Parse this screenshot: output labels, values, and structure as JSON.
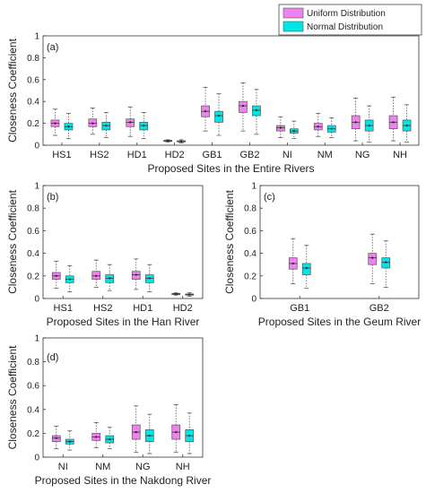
{
  "legend": {
    "placement": "top-right",
    "entries": [
      {
        "label": "Uniform Distribution",
        "color": "#ee82ee"
      },
      {
        "label": "Normal Distribution",
        "color": "#00e5e5"
      }
    ]
  },
  "chart_data": [
    {
      "type": "box",
      "panel_label": "(a)",
      "xlabel": "Proposed Sites in the Entire Rivers",
      "ylabel": "Closeness Coefficient",
      "ylim": [
        0,
        1
      ],
      "yticks": [
        "0",
        "0.2",
        "0.4",
        "0.6",
        "0.8",
        "1"
      ],
      "categories": [
        "HS1",
        "HS2",
        "HD1",
        "HD2",
        "GB1",
        "GB2",
        "NI",
        "NM",
        "NG",
        "NH"
      ],
      "series": [
        {
          "name": "Uniform Distribution",
          "color": "#ee82ee",
          "boxes": [
            [
              0.09,
              0.17,
              0.2,
              0.23,
              0.33
            ],
            [
              0.1,
              0.17,
              0.2,
              0.24,
              0.34
            ],
            [
              0.08,
              0.17,
              0.21,
              0.24,
              0.35
            ],
            [
              0.03,
              0.035,
              0.04,
              0.045,
              0.05
            ],
            [
              0.13,
              0.26,
              0.31,
              0.36,
              0.53
            ],
            [
              0.13,
              0.3,
              0.36,
              0.4,
              0.57
            ],
            [
              0.07,
              0.13,
              0.16,
              0.18,
              0.26
            ],
            [
              0.08,
              0.14,
              0.17,
              0.2,
              0.29
            ],
            [
              0.04,
              0.15,
              0.21,
              0.27,
              0.43
            ],
            [
              0.04,
              0.15,
              0.21,
              0.27,
              0.44
            ]
          ]
        },
        {
          "name": "Normal Distribution",
          "color": "#00e5e5",
          "boxes": [
            [
              0.06,
              0.14,
              0.17,
              0.2,
              0.29
            ],
            [
              0.07,
              0.14,
              0.18,
              0.21,
              0.3
            ],
            [
              0.06,
              0.14,
              0.18,
              0.21,
              0.3
            ],
            [
              0.02,
              0.03,
              0.035,
              0.04,
              0.05
            ],
            [
              0.09,
              0.21,
              0.27,
              0.31,
              0.47
            ],
            [
              0.1,
              0.27,
              0.32,
              0.36,
              0.51
            ],
            [
              0.06,
              0.11,
              0.13,
              0.15,
              0.22
            ],
            [
              0.07,
              0.12,
              0.15,
              0.18,
              0.25
            ],
            [
              0.03,
              0.13,
              0.18,
              0.23,
              0.36
            ],
            [
              0.03,
              0.13,
              0.18,
              0.23,
              0.37
            ]
          ]
        }
      ]
    },
    {
      "type": "box",
      "panel_label": "(b)",
      "xlabel": "Proposed Sites in the Han River",
      "ylabel": "Closeness Coefficient",
      "ylim": [
        0,
        1
      ],
      "yticks": [
        "0",
        "0.2",
        "0.4",
        "0.6",
        "0.8",
        "1"
      ],
      "categories": [
        "HS1",
        "HS2",
        "HD1",
        "HD2"
      ],
      "series": [
        {
          "name": "Uniform Distribution",
          "color": "#ee82ee",
          "boxes": [
            [
              0.09,
              0.17,
              0.2,
              0.23,
              0.33
            ],
            [
              0.1,
              0.17,
              0.2,
              0.24,
              0.34
            ],
            [
              0.08,
              0.17,
              0.21,
              0.24,
              0.35
            ],
            [
              0.03,
              0.035,
              0.04,
              0.045,
              0.05
            ]
          ]
        },
        {
          "name": "Normal Distribution",
          "color": "#00e5e5",
          "boxes": [
            [
              0.06,
              0.14,
              0.17,
              0.2,
              0.29
            ],
            [
              0.07,
              0.14,
              0.18,
              0.21,
              0.3
            ],
            [
              0.06,
              0.14,
              0.18,
              0.21,
              0.3
            ],
            [
              0.02,
              0.03,
              0.035,
              0.04,
              0.05
            ]
          ]
        }
      ]
    },
    {
      "type": "box",
      "panel_label": "(c)",
      "xlabel": "Proposed Sites in the Geum River",
      "ylabel": "Closeness Coefficient",
      "ylim": [
        0,
        1
      ],
      "yticks": [
        "0",
        "0.2",
        "0.4",
        "0.6",
        "0.8",
        "1"
      ],
      "categories": [
        "GB1",
        "GB2"
      ],
      "series": [
        {
          "name": "Uniform Distribution",
          "color": "#ee82ee",
          "boxes": [
            [
              0.13,
              0.26,
              0.31,
              0.36,
              0.53
            ],
            [
              0.13,
              0.3,
              0.36,
              0.4,
              0.57
            ]
          ]
        },
        {
          "name": "Normal Distribution",
          "color": "#00e5e5",
          "boxes": [
            [
              0.09,
              0.21,
              0.27,
              0.31,
              0.47
            ],
            [
              0.1,
              0.27,
              0.32,
              0.36,
              0.51
            ]
          ]
        }
      ]
    },
    {
      "type": "box",
      "panel_label": "(d)",
      "xlabel": "Proposed Sites in the Nakdong River",
      "ylabel": "Closeness Coefficient",
      "ylim": [
        0,
        1
      ],
      "yticks": [
        "0",
        "0.2",
        "0.4",
        "0.6",
        "0.8",
        "1"
      ],
      "categories": [
        "NI",
        "NM",
        "NG",
        "NH"
      ],
      "series": [
        {
          "name": "Uniform Distribution",
          "color": "#ee82ee",
          "boxes": [
            [
              0.07,
              0.13,
              0.16,
              0.18,
              0.26
            ],
            [
              0.08,
              0.14,
              0.17,
              0.2,
              0.29
            ],
            [
              0.04,
              0.15,
              0.21,
              0.27,
              0.43
            ],
            [
              0.04,
              0.15,
              0.21,
              0.27,
              0.44
            ]
          ]
        },
        {
          "name": "Normal Distribution",
          "color": "#00e5e5",
          "boxes": [
            [
              0.06,
              0.11,
              0.13,
              0.15,
              0.22
            ],
            [
              0.07,
              0.12,
              0.15,
              0.18,
              0.25
            ],
            [
              0.03,
              0.13,
              0.18,
              0.23,
              0.36
            ],
            [
              0.03,
              0.13,
              0.18,
              0.23,
              0.37
            ]
          ]
        }
      ]
    }
  ]
}
